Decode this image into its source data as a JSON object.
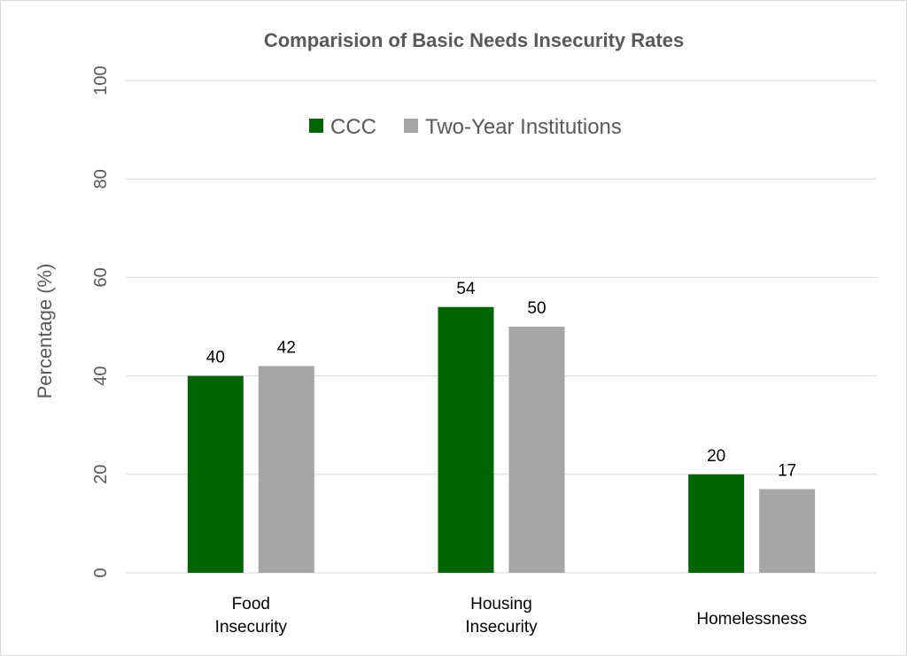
{
  "chart_data": {
    "type": "bar",
    "title": "Comparision of Basic Needs Insecurity Rates",
    "ylabel": "Percentage (%)",
    "xlabel": "",
    "categories": [
      [
        "Food",
        "Insecurity"
      ],
      [
        "Housing",
        "Insecurity"
      ],
      [
        "Homelessness"
      ]
    ],
    "series": [
      {
        "name": "CCC",
        "color": "#006400",
        "values": [
          40,
          54,
          20
        ]
      },
      {
        "name": "Two-Year Institutions",
        "color": "#a6a6a6",
        "values": [
          42,
          50,
          17
        ]
      }
    ],
    "ylim": [
      0,
      100
    ],
    "yticks": [
      "0",
      "20",
      "40",
      "60",
      "80",
      "100"
    ],
    "grid": true,
    "legend": "top-center"
  }
}
